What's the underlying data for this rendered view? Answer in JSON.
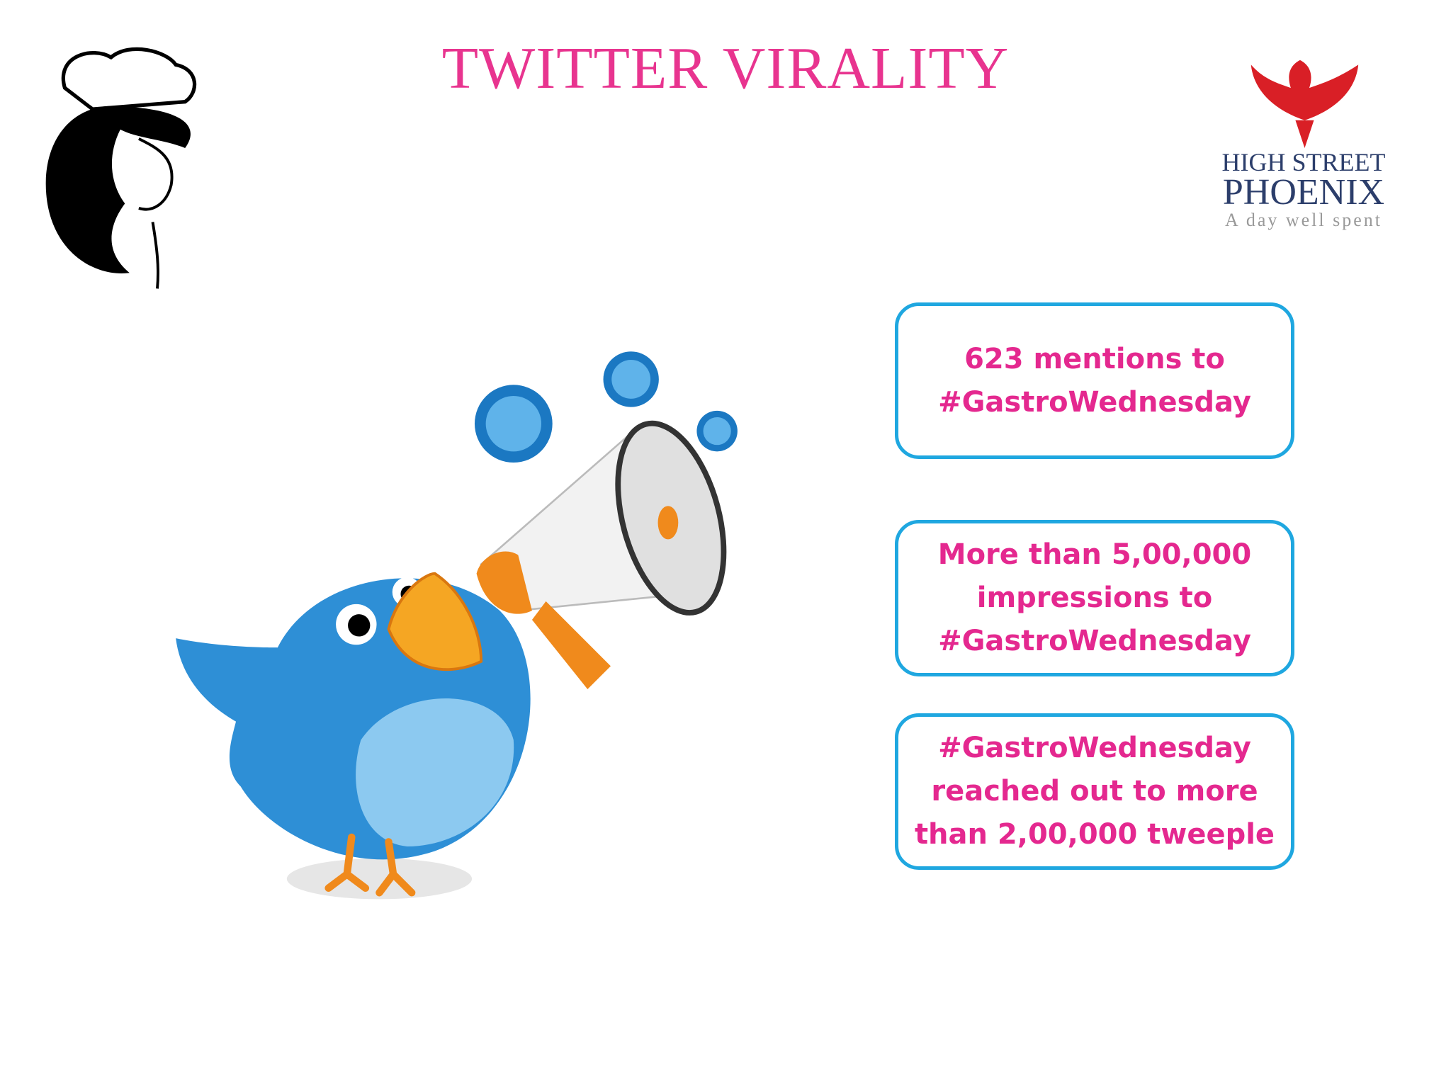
{
  "header": {
    "title": "TWITTER VIRALITY"
  },
  "logo": {
    "line1": "HIGH STREET",
    "line2": "PHOENIX",
    "tagline": "A day well spent"
  },
  "boxes": [
    {
      "lines": [
        "623 mentions to",
        "#GastroWednesday"
      ]
    },
    {
      "lines": [
        "More than 5,00,000",
        "impressions to",
        "#GastroWednesday"
      ]
    },
    {
      "lines": [
        "#GastroWednesday",
        "reached out to more",
        "than 2,00,000 tweeple"
      ]
    }
  ]
}
